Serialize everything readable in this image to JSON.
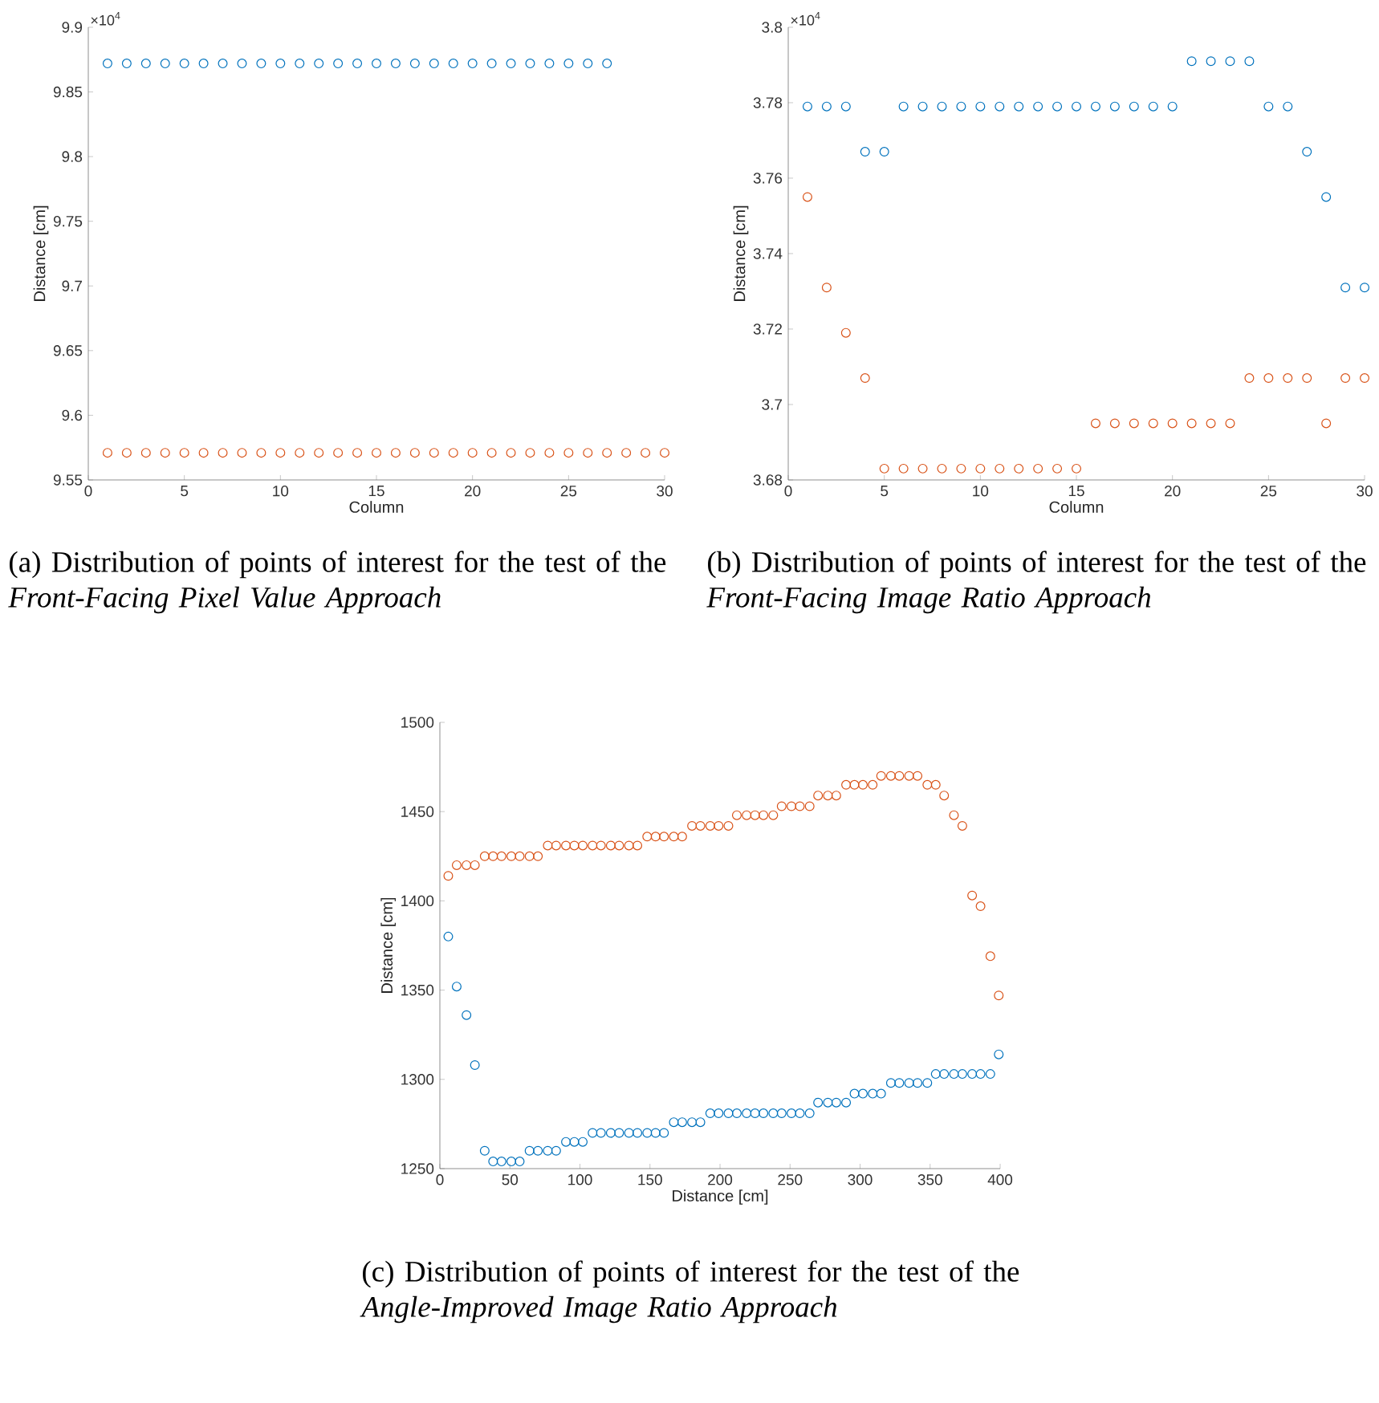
{
  "chart_data": [
    {
      "type": "scatter",
      "title": "(a) Distribution of points of interest for the test of the *Front-Facing Pixel Value Approach*",
      "xlabel": "Column",
      "ylabel": "Distance [cm]",
      "marker": "circle",
      "annotations": [
        "×10$^{4}$"
      ],
      "xlim": [
        0,
        30
      ],
      "xticks": [
        0,
        5,
        10,
        15,
        20,
        25,
        30
      ],
      "ylim": [
        9.55,
        9.9
      ],
      "yticks": [
        9.55,
        9.6,
        9.65,
        9.7,
        9.75,
        9.8,
        9.85,
        9.9
      ],
      "x": [
        1,
        2,
        3,
        4,
        5,
        6,
        7,
        8,
        9,
        10,
        11,
        12,
        13,
        14,
        15,
        16,
        17,
        18,
        19,
        20,
        21,
        22,
        23,
        24,
        25,
        26,
        27,
        28,
        29,
        30
      ],
      "series": [
        {
          "color": "#0072bd",
          "values": [
            9.872,
            9.872,
            9.872,
            9.872,
            9.872,
            9.872,
            9.872,
            9.872,
            9.872,
            9.872,
            9.872,
            9.872,
            9.872,
            9.872,
            9.872,
            9.872,
            9.872,
            9.872,
            9.872,
            9.872,
            9.872,
            9.872,
            9.872,
            9.872,
            9.872,
            9.872,
            9.872,
            null,
            null,
            null
          ]
        },
        {
          "color": "#d95319",
          "values": [
            9.571,
            9.571,
            9.571,
            9.571,
            9.571,
            9.571,
            9.571,
            9.571,
            9.571,
            9.571,
            9.571,
            9.571,
            9.571,
            9.571,
            9.571,
            9.571,
            9.571,
            9.571,
            9.571,
            9.571,
            9.571,
            9.571,
            9.571,
            9.571,
            9.571,
            9.571,
            9.571,
            9.571,
            9.571,
            9.571
          ]
        }
      ]
    },
    {
      "type": "scatter",
      "title": "(b) Distribution of points of interest for the test of the *Front-Facing Image Ratio Approach*",
      "xlabel": "Column",
      "ylabel": "Distance [cm]",
      "marker": "circle",
      "annotations": [
        "×10$^{4}$"
      ],
      "xlim": [
        0,
        30
      ],
      "xticks": [
        0,
        5,
        10,
        15,
        20,
        25,
        30
      ],
      "ylim": [
        3.68,
        3.8
      ],
      "yticks": [
        3.68,
        3.7,
        3.72,
        3.74,
        3.76,
        3.78,
        3.8
      ],
      "x": [
        1,
        2,
        3,
        4,
        5,
        6,
        7,
        8,
        9,
        10,
        11,
        12,
        13,
        14,
        15,
        16,
        17,
        18,
        19,
        20,
        21,
        22,
        23,
        24,
        25,
        26,
        27,
        28,
        29,
        30
      ],
      "series": [
        {
          "color": "#0072bd",
          "values": [
            3.779,
            3.779,
            3.779,
            3.767,
            3.767,
            3.779,
            3.779,
            3.779,
            3.779,
            3.779,
            3.779,
            3.779,
            3.779,
            3.779,
            3.779,
            3.779,
            3.779,
            3.779,
            3.779,
            3.779,
            3.791,
            3.791,
            3.791,
            3.791,
            3.779,
            3.779,
            3.767,
            3.755,
            3.731,
            3.731
          ]
        },
        {
          "color": "#d95319",
          "values": [
            3.755,
            3.731,
            3.719,
            3.707,
            3.683,
            3.683,
            3.683,
            3.683,
            3.683,
            3.683,
            3.683,
            3.683,
            3.683,
            3.683,
            3.683,
            3.695,
            3.695,
            3.695,
            3.695,
            3.695,
            3.695,
            3.695,
            3.695,
            3.707,
            3.707,
            3.707,
            3.707,
            3.695,
            3.707,
            3.707
          ]
        }
      ]
    },
    {
      "type": "scatter",
      "title": "(c) Distribution of points of interest for the test of the *Angle-Improved Image Ratio Approach*",
      "xlabel": "Distance [cm]",
      "ylabel": "Distance [cm]",
      "marker": "circle",
      "xlim": [
        0,
        400
      ],
      "xticks": [
        0,
        50,
        100,
        150,
        200,
        250,
        300,
        350,
        400
      ],
      "ylim": [
        1250,
        1500
      ],
      "yticks": [
        1250,
        1300,
        1350,
        1400,
        1450,
        1500
      ],
      "x": [
        6,
        12,
        19,
        25,
        32,
        38,
        44,
        51,
        57,
        64,
        70,
        77,
        83,
        90,
        96,
        102,
        109,
        115,
        122,
        128,
        135,
        141,
        148,
        154,
        160,
        167,
        173,
        180,
        186,
        193,
        199,
        206,
        212,
        219,
        225,
        231,
        238,
        244,
        251,
        257,
        264,
        270,
        277,
        283,
        290,
        296,
        302,
        309,
        315,
        322,
        328,
        335,
        341,
        348,
        354,
        360,
        367,
        373,
        380,
        386,
        393,
        399
      ],
      "series": [
        {
          "color": "#0072bd",
          "values": [
            1380,
            1352,
            1336,
            1308,
            1260,
            1254,
            1254,
            1254,
            1254,
            1260,
            1260,
            1260,
            1260,
            1265,
            1265,
            1265,
            1270,
            1270,
            1270,
            1270,
            1270,
            1270,
            1270,
            1270,
            1270,
            1276,
            1276,
            1276,
            1276,
            1281,
            1281,
            1281,
            1281,
            1281,
            1281,
            1281,
            1281,
            1281,
            1281,
            1281,
            1281,
            1287,
            1287,
            1287,
            1287,
            1292,
            1292,
            1292,
            1292,
            1298,
            1298,
            1298,
            1298,
            1298,
            1303,
            1303,
            1303,
            1303,
            1303,
            1303,
            1303,
            1314
          ]
        },
        {
          "color": "#d95319",
          "values": [
            1414,
            1420,
            1420,
            1420,
            1425,
            1425,
            1425,
            1425,
            1425,
            1425,
            1425,
            1431,
            1431,
            1431,
            1431,
            1431,
            1431,
            1431,
            1431,
            1431,
            1431,
            1431,
            1436,
            1436,
            1436,
            1436,
            1436,
            1442,
            1442,
            1442,
            1442,
            1442,
            1448,
            1448,
            1448,
            1448,
            1448,
            1453,
            1453,
            1453,
            1453,
            1459,
            1459,
            1459,
            1465,
            1465,
            1465,
            1465,
            1470,
            1470,
            1470,
            1470,
            1470,
            1465,
            1465,
            1459,
            1448,
            1442,
            1403,
            1397,
            1369,
            1347
          ]
        }
      ]
    }
  ]
}
